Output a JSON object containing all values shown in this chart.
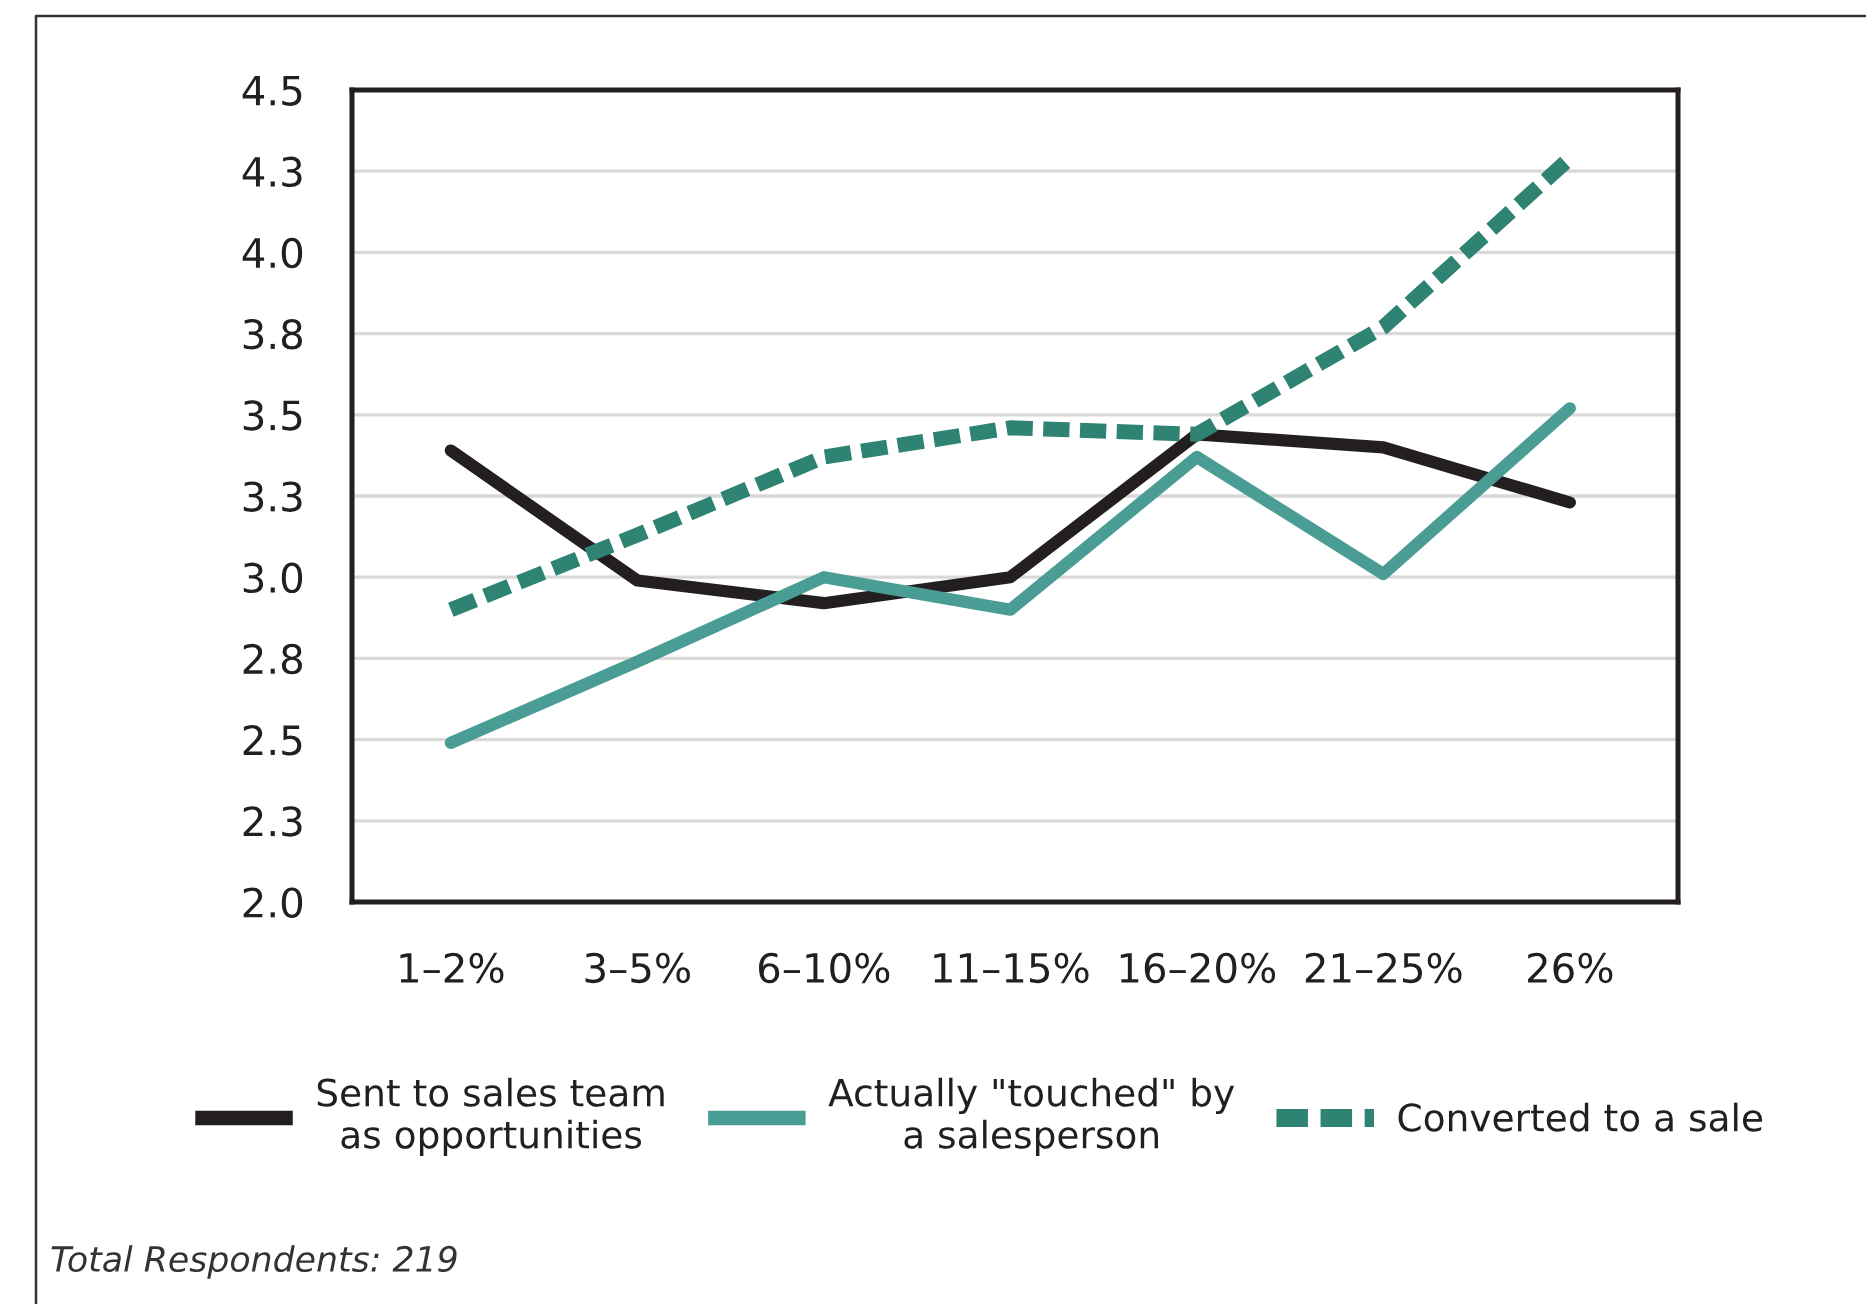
{
  "chart_data": {
    "type": "line",
    "categories": [
      "1–2%",
      "3–5%",
      "6–10%",
      "11–15%",
      "16–20%",
      "21–25%",
      "26%"
    ],
    "series": [
      {
        "name": "Sent to sales team\nas opportunities",
        "color": "#231f20",
        "line_style": "solid",
        "values": [
          3.39,
          2.99,
          2.92,
          3.0,
          3.44,
          3.4,
          3.23
        ]
      },
      {
        "name": "Actually \"touched\" by\na salesperson",
        "color": "#4a9d95",
        "line_style": "solid",
        "values": [
          2.49,
          2.74,
          3.0,
          2.9,
          3.37,
          3.01,
          3.52
        ]
      },
      {
        "name": "Converted to a sale",
        "color": "#2e8373",
        "line_style": "dotted",
        "values": [
          2.9,
          3.13,
          3.37,
          3.46,
          3.44,
          3.77,
          4.29
        ]
      }
    ],
    "ylim": [
      2,
      4.5
    ],
    "yticks": [
      {
        "value": 2,
        "label": "2.0"
      },
      {
        "value": 2.25,
        "label": "2.3"
      },
      2.5,
      {
        "value": 2.75,
        "label": "2.8"
      },
      {
        "value": 3,
        "label": "3.0"
      },
      {
        "value": 3.25,
        "label": "3.3"
      },
      3.5,
      {
        "value": 3.75,
        "label": "3.8"
      },
      {
        "value": 4,
        "label": "4.0"
      },
      {
        "value": 4.25,
        "label": "4.3"
      },
      4.5
    ],
    "grid": "y",
    "legend": "bottom",
    "marker": "none",
    "annotations": [
      "Total Respondents: 219"
    ]
  }
}
